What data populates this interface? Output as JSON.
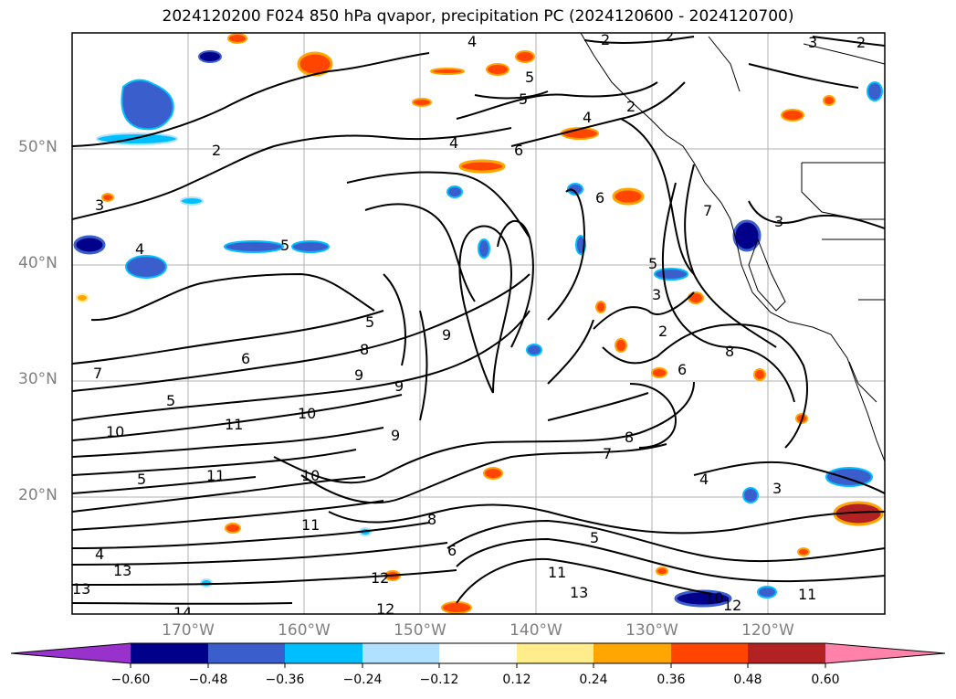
{
  "title": "2024120200 F024 850 hPa qvapor, precipitation PC (2024120600 - 2024120700)",
  "lat_labels": [
    "50°N",
    "40°N",
    "30°N",
    "20°N"
  ],
  "lon_labels": [
    "170°W",
    "160°W",
    "150°W",
    "140°W",
    "130°W",
    "120°W"
  ],
  "colorbar": {
    "colors": [
      "#9932cc",
      "#00008b",
      "#3a5fcd",
      "#00bfff",
      "#b0e2ff",
      "#ffffff",
      "#ffec8b",
      "#ffa500",
      "#ff4500",
      "#b22222",
      "#ff82ab"
    ],
    "ticks": [
      "−0.60",
      "−0.48",
      "−0.36",
      "−0.24",
      "−0.12",
      "0.12",
      "0.24",
      "0.36",
      "0.48",
      "0.60"
    ]
  },
  "contour_labels": [
    "4",
    "2",
    "2",
    "3",
    "2",
    "5",
    "5",
    "4",
    "6",
    "4",
    "2",
    "3",
    "5",
    "4",
    "2",
    "6",
    "7",
    "3",
    "2",
    "3",
    "5",
    "6",
    "5",
    "9",
    "8",
    "7",
    "8",
    "9",
    "10",
    "9",
    "11",
    "12",
    "13",
    "10",
    "8",
    "6",
    "5",
    "4",
    "11",
    "12",
    "13",
    "11",
    "10",
    "14",
    "12",
    "11",
    "13",
    "11",
    "3",
    "4",
    "5",
    "7",
    "8",
    "6",
    "5",
    "9",
    "10"
  ]
}
